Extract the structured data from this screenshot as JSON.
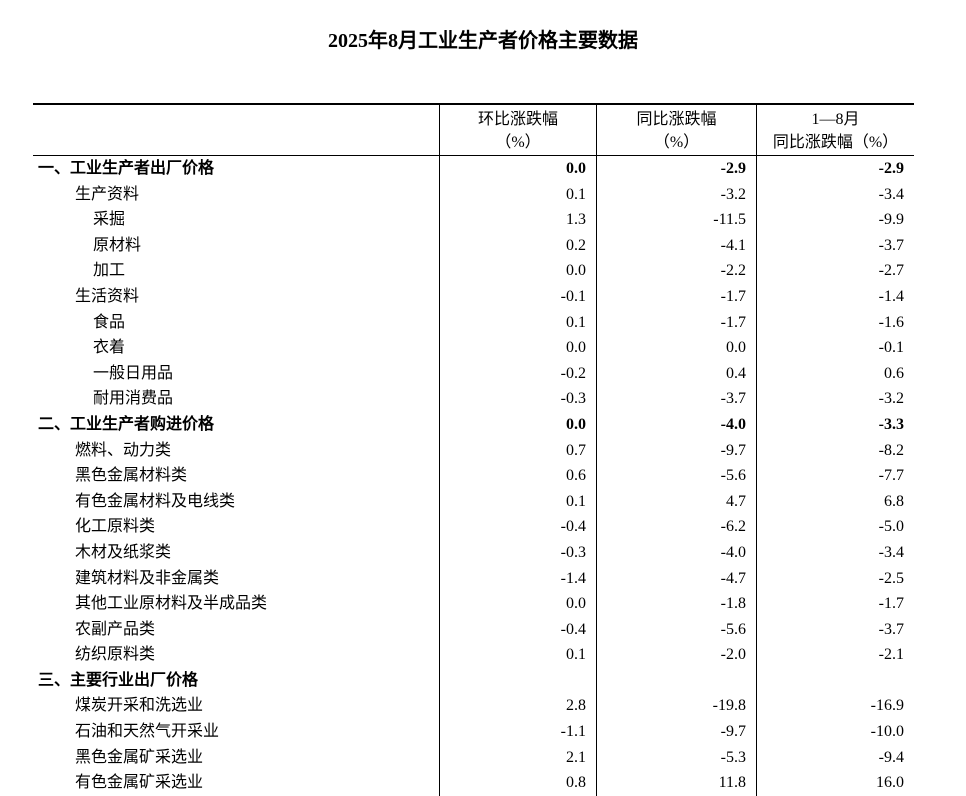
{
  "title": "2025年8月工业生产者价格主要数据",
  "headers": {
    "col1_line1": "环比涨跌幅",
    "col1_line2": "（%）",
    "col2_line1": "同比涨跌幅",
    "col2_line2": "（%）",
    "col3_line1": "1—8月",
    "col3_line2": "同比涨跌幅（%）"
  },
  "rows": [
    {
      "label": "一、工业生产者出厂价格",
      "level": 0,
      "mom": "0.0",
      "yoy": "-2.9",
      "ytd": "-2.9"
    },
    {
      "label": "生产资料",
      "level": 1,
      "mom": "0.1",
      "yoy": "-3.2",
      "ytd": "-3.4"
    },
    {
      "label": "采掘",
      "level": 2,
      "mom": "1.3",
      "yoy": "-11.5",
      "ytd": "-9.9"
    },
    {
      "label": "原材料",
      "level": 2,
      "mom": "0.2",
      "yoy": "-4.1",
      "ytd": "-3.7"
    },
    {
      "label": "加工",
      "level": 2,
      "mom": "0.0",
      "yoy": "-2.2",
      "ytd": "-2.7"
    },
    {
      "label": "生活资料",
      "level": 1,
      "mom": "-0.1",
      "yoy": "-1.7",
      "ytd": "-1.4"
    },
    {
      "label": "食品",
      "level": 2,
      "mom": "0.1",
      "yoy": "-1.7",
      "ytd": "-1.6"
    },
    {
      "label": "衣着",
      "level": 2,
      "mom": "0.0",
      "yoy": "0.0",
      "ytd": "-0.1"
    },
    {
      "label": "一般日用品",
      "level": 2,
      "mom": "-0.2",
      "yoy": "0.4",
      "ytd": "0.6"
    },
    {
      "label": "耐用消费品",
      "level": 2,
      "mom": "-0.3",
      "yoy": "-3.7",
      "ytd": "-3.2"
    },
    {
      "label": "二、工业生产者购进价格",
      "level": 0,
      "mom": "0.0",
      "yoy": "-4.0",
      "ytd": "-3.3"
    },
    {
      "label": "燃料、动力类",
      "level": 1,
      "mom": "0.7",
      "yoy": "-9.7",
      "ytd": "-8.2"
    },
    {
      "label": "黑色金属材料类",
      "level": 1,
      "mom": "0.6",
      "yoy": "-5.6",
      "ytd": "-7.7"
    },
    {
      "label": "有色金属材料及电线类",
      "level": 1,
      "mom": "0.1",
      "yoy": "4.7",
      "ytd": "6.8"
    },
    {
      "label": "化工原料类",
      "level": 1,
      "mom": "-0.4",
      "yoy": "-6.2",
      "ytd": "-5.0"
    },
    {
      "label": "木材及纸浆类",
      "level": 1,
      "mom": "-0.3",
      "yoy": "-4.0",
      "ytd": "-3.4"
    },
    {
      "label": "建筑材料及非金属类",
      "level": 1,
      "mom": "-1.4",
      "yoy": "-4.7",
      "ytd": "-2.5"
    },
    {
      "label": "其他工业原材料及半成品类",
      "level": 1,
      "mom": "0.0",
      "yoy": "-1.8",
      "ytd": "-1.7"
    },
    {
      "label": "农副产品类",
      "level": 1,
      "mom": "-0.4",
      "yoy": "-5.6",
      "ytd": "-3.7"
    },
    {
      "label": "纺织原料类",
      "level": 1,
      "mom": "0.1",
      "yoy": "-2.0",
      "ytd": "-2.1"
    },
    {
      "label": "三、主要行业出厂价格",
      "level": 0,
      "mom": "",
      "yoy": "",
      "ytd": ""
    },
    {
      "label": "煤炭开采和洗选业",
      "level": 1,
      "mom": "2.8",
      "yoy": "-19.8",
      "ytd": "-16.9"
    },
    {
      "label": "石油和天然气开采业",
      "level": 1,
      "mom": "-1.1",
      "yoy": "-9.7",
      "ytd": "-10.0"
    },
    {
      "label": "黑色金属矿采选业",
      "level": 1,
      "mom": "2.1",
      "yoy": "-5.3",
      "ytd": "-9.4"
    },
    {
      "label": "有色金属矿采选业",
      "level": 1,
      "mom": "0.8",
      "yoy": "11.8",
      "ytd": "16.0"
    }
  ]
}
